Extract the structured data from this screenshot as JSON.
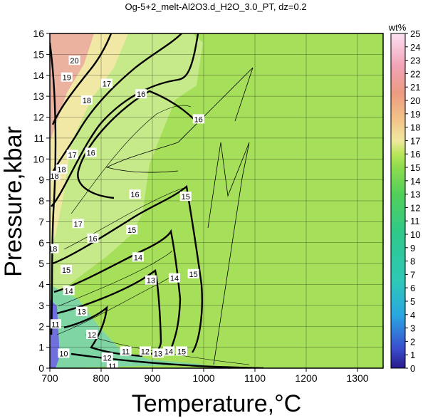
{
  "chart_data": {
    "type": "heatmap",
    "title": "Og-5+2_melt-Al2O3.d_H2O_3.0_PT, dz=0.2",
    "xlabel": "Temperature,°C",
    "ylabel": "Pressure,kbar",
    "xlim": [
      700,
      1350
    ],
    "ylim": [
      0,
      16
    ],
    "xticks": [
      700,
      800,
      900,
      1000,
      1100,
      1200,
      1300
    ],
    "yticks": [
      0,
      1,
      2,
      3,
      4,
      5,
      6,
      7,
      8,
      9,
      10,
      11,
      12,
      13,
      14,
      15,
      16
    ],
    "grid": true,
    "colorbar": {
      "label": "wt%",
      "min": 0,
      "max": 25,
      "ticks": [
        0,
        1,
        2,
        3,
        4,
        5,
        6,
        7,
        8,
        9,
        10,
        11,
        12,
        13,
        14,
        15,
        16,
        17,
        18,
        19,
        20,
        21,
        22,
        23,
        24,
        25
      ]
    },
    "background_value": 15.5,
    "contour_labels": [
      {
        "value": "20",
        "T": 748,
        "P": 14.7
      },
      {
        "value": "19",
        "T": 733,
        "P": 13.9
      },
      {
        "value": "18",
        "T": 772,
        "P": 12.8
      },
      {
        "value": "17",
        "T": 811,
        "P": 13.6
      },
      {
        "value": "16",
        "T": 878,
        "P": 13.1
      },
      {
        "value": "16",
        "T": 990,
        "P": 11.9
      },
      {
        "value": "17",
        "T": 744,
        "P": 10.2
      },
      {
        "value": "16",
        "T": 780,
        "P": 10.3
      },
      {
        "value": "18",
        "T": 709,
        "P": 9.2
      },
      {
        "value": "18",
        "T": 723,
        "P": 9.5
      },
      {
        "value": "16",
        "T": 866,
        "P": 8.3
      },
      {
        "value": "15",
        "T": 965,
        "P": 8.2
      },
      {
        "value": "17",
        "T": 755,
        "P": 6.9
      },
      {
        "value": "16",
        "T": 784,
        "P": 6.2
      },
      {
        "value": "15",
        "T": 860,
        "P": 6.6
      },
      {
        "value": "18",
        "T": 706,
        "P": 5.7
      },
      {
        "value": "15",
        "T": 732,
        "P": 4.7
      },
      {
        "value": "14",
        "T": 872,
        "P": 5.3
      },
      {
        "value": "15",
        "T": 980,
        "P": 4.5
      },
      {
        "value": "13",
        "T": 897,
        "P": 4.2
      },
      {
        "value": "14",
        "T": 943,
        "P": 4.3
      },
      {
        "value": "14",
        "T": 737,
        "P": 3.7
      },
      {
        "value": "13",
        "T": 762,
        "P": 2.7
      },
      {
        "value": "11",
        "T": 711,
        "P": 2.1
      },
      {
        "value": "12",
        "T": 782,
        "P": 1.6
      },
      {
        "value": "10",
        "T": 727,
        "P": 0.7
      },
      {
        "value": "12",
        "T": 812,
        "P": 0.5
      },
      {
        "value": "11",
        "T": 848,
        "P": 0.8
      },
      {
        "value": "12",
        "T": 886,
        "P": 0.8
      },
      {
        "value": "13",
        "T": 911,
        "P": 0.7
      },
      {
        "value": "14",
        "T": 932,
        "P": 0.8
      },
      {
        "value": "15",
        "T": 957,
        "P": 0.8
      },
      {
        "value": "11",
        "T": 822,
        "P": 0.1
      }
    ]
  }
}
